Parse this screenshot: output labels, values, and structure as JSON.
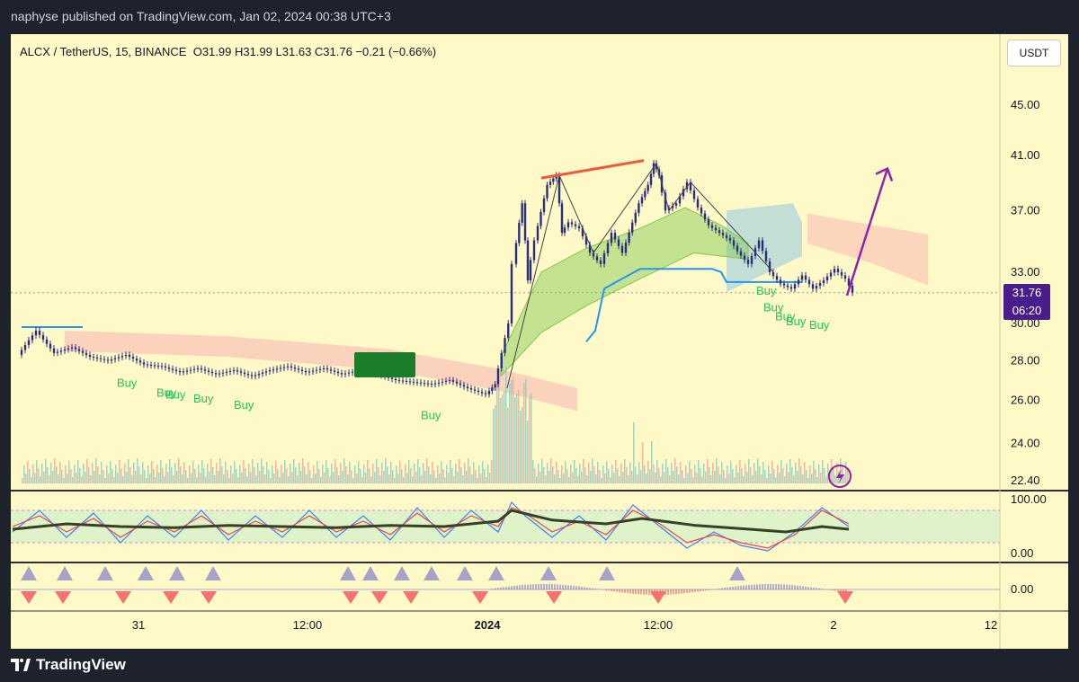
{
  "header": {
    "published_text": "naphyse published on TradingView.com, Jan 02, 2024 00:38 UTC+3"
  },
  "symbol": {
    "name": "ALCX / TetherUS, 15, BINANCE",
    "open": "O31.99",
    "high": "H31.99",
    "low": "L31.63",
    "close": "C31.76",
    "change": "−0.21 (−0.66%)"
  },
  "currency_button": "USDT",
  "price_tag": {
    "price": "31.76",
    "countdown": "06:20"
  },
  "footer": {
    "brand": "TradingView"
  },
  "colors": {
    "background": "#fff9c7",
    "candle": "#2a2e7c",
    "buy_label": "#22c55e",
    "sell_marker": "#f87171",
    "buy_marker": "#a5a3c8",
    "arrow": "#8e24aa",
    "kijun": "#2196f3",
    "cloud_bear": "#f8b4b4",
    "cloud_bull": "#90c8e0",
    "hull_band": "#7ac74f",
    "stoch_k": "#3b82f6",
    "stoch_d": "#ef4444",
    "stoch_avg": "#374027"
  },
  "chart_data": {
    "type": "candlestick",
    "title": "",
    "xlabel": "",
    "ylabel": "",
    "x_ticks": [
      "31",
      "12:00",
      "2024",
      "12:00",
      "2",
      "12"
    ],
    "y_ticks": [
      22.4,
      24.0,
      26.0,
      28.0,
      30.0,
      33.0,
      37.0,
      41.0,
      45.0
    ],
    "y_tick_labels": [
      "22.40",
      "24.00",
      "26.00",
      "28.00",
      "30.00",
      "33.00",
      "37.00",
      "41.00",
      "45.00"
    ],
    "ylim": [
      22.0,
      48.0
    ],
    "scale": "log",
    "last_price": 31.76,
    "price_path": [
      [
        0,
        28.3
      ],
      [
        20,
        29.6
      ],
      [
        40,
        28.4
      ],
      [
        60,
        28.7
      ],
      [
        80,
        28.2
      ],
      [
        100,
        28.0
      ],
      [
        120,
        28.3
      ],
      [
        140,
        27.8
      ],
      [
        160,
        27.7
      ],
      [
        180,
        27.4
      ],
      [
        200,
        27.6
      ],
      [
        220,
        27.3
      ],
      [
        240,
        27.5
      ],
      [
        260,
        27.2
      ],
      [
        280,
        27.5
      ],
      [
        300,
        27.7
      ],
      [
        320,
        27.4
      ],
      [
        340,
        27.6
      ],
      [
        360,
        27.3
      ],
      [
        380,
        27.5
      ],
      [
        400,
        27.3
      ],
      [
        420,
        27.0
      ],
      [
        440,
        26.9
      ],
      [
        460,
        26.8
      ],
      [
        480,
        27.0
      ],
      [
        500,
        26.6
      ],
      [
        520,
        26.3
      ],
      [
        530,
        26.8
      ],
      [
        545,
        30.0
      ],
      [
        550,
        33.5
      ],
      [
        560,
        37.5
      ],
      [
        566,
        32.5
      ],
      [
        574,
        35.0
      ],
      [
        588,
        38.8
      ],
      [
        598,
        39.5
      ],
      [
        604,
        35.5
      ],
      [
        612,
        36.2
      ],
      [
        624,
        35.8
      ],
      [
        636,
        34.2
      ],
      [
        648,
        33.5
      ],
      [
        660,
        35.5
      ],
      [
        672,
        34.2
      ],
      [
        690,
        37.5
      ],
      [
        700,
        38.8
      ],
      [
        706,
        40.4
      ],
      [
        712,
        39.5
      ],
      [
        720,
        37.0
      ],
      [
        732,
        37.5
      ],
      [
        744,
        39.0
      ],
      [
        756,
        37.2
      ],
      [
        768,
        36.0
      ],
      [
        780,
        35.5
      ],
      [
        792,
        35.0
      ],
      [
        800,
        34.3
      ],
      [
        812,
        33.5
      ],
      [
        824,
        35.0
      ],
      [
        836,
        33.0
      ],
      [
        848,
        32.3
      ],
      [
        860,
        32.0
      ],
      [
        872,
        32.8
      ],
      [
        884,
        32.0
      ],
      [
        896,
        32.5
      ],
      [
        908,
        33.2
      ],
      [
        920,
        32.6
      ],
      [
        928,
        31.76
      ]
    ],
    "annotations": [
      {
        "kind": "label",
        "text": "Buy",
        "x": 118,
        "y": 27.4
      },
      {
        "kind": "label",
        "text": "Buy",
        "x": 162,
        "y": 26.9
      },
      {
        "kind": "label",
        "text": "Buy",
        "x": 172,
        "y": 26.8
      },
      {
        "kind": "label",
        "text": "Buy",
        "x": 203,
        "y": 26.6
      },
      {
        "kind": "label",
        "text": "Buy",
        "x": 248,
        "y": 26.3
      },
      {
        "kind": "label",
        "text": "Buy",
        "x": 456,
        "y": 25.8
      },
      {
        "kind": "label",
        "text": "Buy",
        "x": 829,
        "y": 32.5
      },
      {
        "kind": "label",
        "text": "Buy",
        "x": 837,
        "y": 31.5
      },
      {
        "kind": "label",
        "text": "Buy",
        "x": 850,
        "y": 31.0
      },
      {
        "kind": "label",
        "text": "Buy",
        "x": 862,
        "y": 30.7
      },
      {
        "kind": "label",
        "text": "Buy",
        "x": 888,
        "y": 30.5
      }
    ],
    "projection_arrow": {
      "from": [
        930,
        31.6
      ],
      "to": [
        975,
        40.0
      ]
    },
    "stochastic": {
      "ylim": [
        0,
        100
      ],
      "y_tick_labels": [
        "100.00",
        "0.00"
      ],
      "bands": [
        20,
        80
      ],
      "k_path": [
        [
          0,
          40
        ],
        [
          30,
          80
        ],
        [
          60,
          30
        ],
        [
          90,
          75
        ],
        [
          120,
          20
        ],
        [
          150,
          70
        ],
        [
          180,
          30
        ],
        [
          210,
          80
        ],
        [
          240,
          25
        ],
        [
          270,
          70
        ],
        [
          300,
          30
        ],
        [
          330,
          80
        ],
        [
          360,
          30
        ],
        [
          390,
          70
        ],
        [
          420,
          25
        ],
        [
          450,
          85
        ],
        [
          480,
          30
        ],
        [
          510,
          80
        ],
        [
          540,
          40
        ],
        [
          555,
          95
        ],
        [
          570,
          70
        ],
        [
          600,
          30
        ],
        [
          630,
          70
        ],
        [
          660,
          25
        ],
        [
          690,
          90
        ],
        [
          720,
          50
        ],
        [
          750,
          10
        ],
        [
          780,
          40
        ],
        [
          810,
          15
        ],
        [
          840,
          5
        ],
        [
          870,
          40
        ],
        [
          900,
          85
        ],
        [
          930,
          50
        ]
      ],
      "d_path": [
        [
          0,
          50
        ],
        [
          30,
          70
        ],
        [
          60,
          40
        ],
        [
          90,
          65
        ],
        [
          120,
          30
        ],
        [
          150,
          60
        ],
        [
          180,
          40
        ],
        [
          210,
          70
        ],
        [
          240,
          35
        ],
        [
          270,
          60
        ],
        [
          300,
          40
        ],
        [
          330,
          70
        ],
        [
          360,
          40
        ],
        [
          390,
          60
        ],
        [
          420,
          35
        ],
        [
          450,
          75
        ],
        [
          480,
          40
        ],
        [
          510,
          70
        ],
        [
          540,
          50
        ],
        [
          555,
          85
        ],
        [
          570,
          75
        ],
        [
          600,
          40
        ],
        [
          630,
          60
        ],
        [
          660,
          35
        ],
        [
          690,
          80
        ],
        [
          720,
          55
        ],
        [
          750,
          20
        ],
        [
          780,
          35
        ],
        [
          810,
          20
        ],
        [
          840,
          10
        ],
        [
          870,
          35
        ],
        [
          900,
          80
        ],
        [
          930,
          55
        ]
      ],
      "avg_path": [
        [
          0,
          45
        ],
        [
          60,
          55
        ],
        [
          120,
          50
        ],
        [
          180,
          48
        ],
        [
          240,
          52
        ],
        [
          300,
          50
        ],
        [
          360,
          48
        ],
        [
          420,
          52
        ],
        [
          480,
          50
        ],
        [
          540,
          60
        ],
        [
          555,
          80
        ],
        [
          600,
          62
        ],
        [
          660,
          55
        ],
        [
          700,
          65
        ],
        [
          760,
          52
        ],
        [
          820,
          45
        ],
        [
          860,
          40
        ],
        [
          900,
          50
        ],
        [
          930,
          45
        ]
      ]
    },
    "momentum": {
      "y_tick_labels": [
        "0.00"
      ],
      "up_triangles_x": [
        20,
        60,
        105,
        150,
        185,
        225,
        375,
        400,
        435,
        468,
        505,
        540,
        598,
        663,
        808
      ],
      "down_triangles_x": [
        20,
        58,
        125,
        178,
        220,
        378,
        410,
        445,
        522,
        604,
        720,
        928
      ]
    }
  }
}
